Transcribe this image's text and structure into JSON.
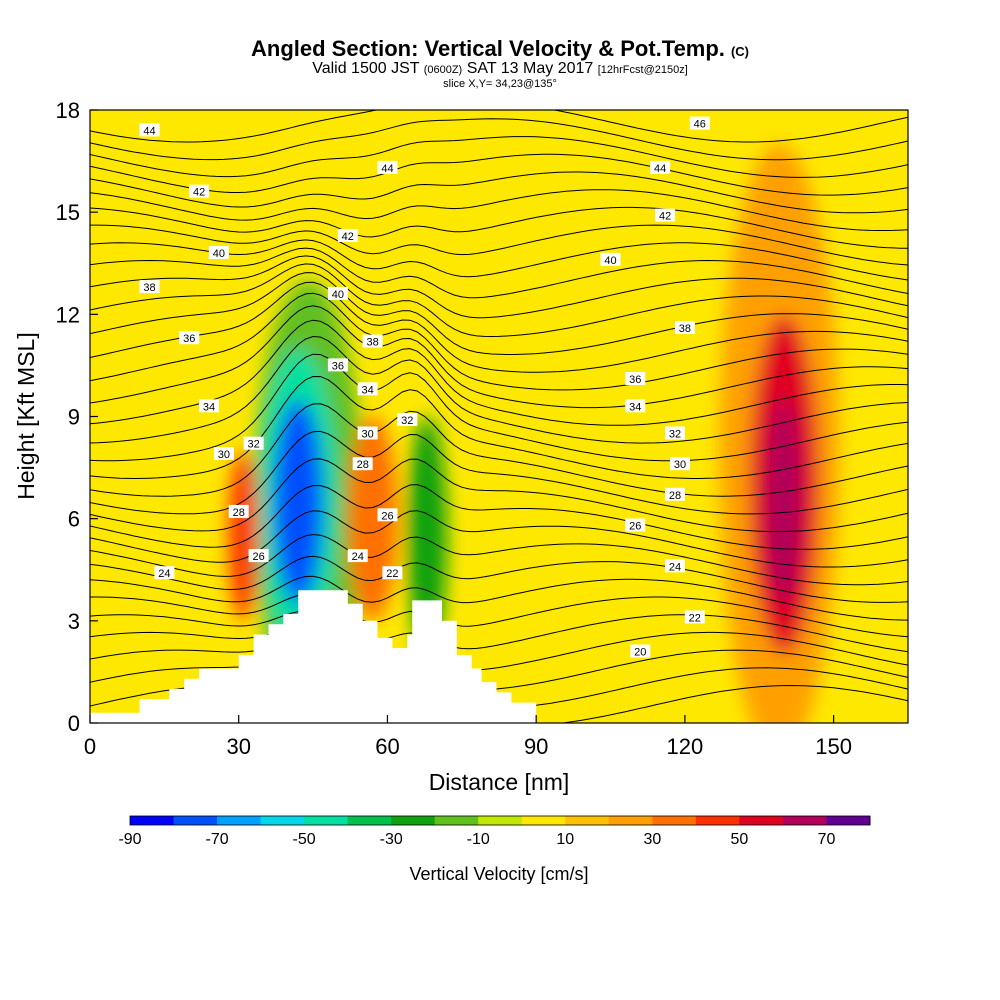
{
  "title": {
    "main": "Angled Section: Vertical Velocity & Pot.Temp.",
    "copyright": "(C)",
    "valid_prefix": "Valid 1500 JST",
    "valid_zulu": "(0600Z)",
    "valid_date": "SAT 13 May 2017",
    "forecast": "[12hrFcst@2150z]",
    "slice": "slice X,Y= 34,23@135°"
  },
  "chart_data": {
    "type": "heatmap",
    "xlabel": "Distance [nm]",
    "ylabel": "Height [Kft MSL]",
    "xlim": [
      0,
      165
    ],
    "ylim": [
      0,
      18
    ],
    "xticks": [
      0,
      30,
      60,
      90,
      120,
      150
    ],
    "yticks": [
      0,
      3,
      6,
      9,
      12,
      15,
      18
    ],
    "background_field_cms": 5,
    "colorbar": {
      "label": "Vertical Velocity [cm/s]",
      "tick_labels": [
        "-90",
        "-70",
        "-50",
        "-30",
        "-10",
        "10",
        "30",
        "50",
        "70"
      ],
      "levels": [
        -90,
        -80,
        -70,
        -60,
        -50,
        -40,
        -30,
        -20,
        -10,
        0,
        10,
        20,
        30,
        40,
        50,
        60,
        70
      ],
      "colors": [
        "#0000ff",
        "#0050ff",
        "#00a0ff",
        "#00d8e8",
        "#00e0a0",
        "#00c050",
        "#10a010",
        "#60c020",
        "#c0e800",
        "#ffe800",
        "#ffc000",
        "#ffa000",
        "#ff7000",
        "#ff3000",
        "#e00020",
        "#b0005a",
        "#600090"
      ]
    },
    "terrain": [
      [
        0,
        0.3
      ],
      [
        10,
        0.3
      ],
      [
        10,
        0.7
      ],
      [
        16,
        0.7
      ],
      [
        16,
        1.0
      ],
      [
        19,
        1.0
      ],
      [
        19,
        1.3
      ],
      [
        22,
        1.3
      ],
      [
        22,
        1.6
      ],
      [
        30,
        1.6
      ],
      [
        30,
        2.0
      ],
      [
        33,
        2.0
      ],
      [
        33,
        2.6
      ],
      [
        36,
        2.6
      ],
      [
        36,
        2.9
      ],
      [
        39,
        2.9
      ],
      [
        39,
        3.2
      ],
      [
        42,
        3.2
      ],
      [
        42,
        3.9
      ],
      [
        52,
        3.9
      ],
      [
        52,
        3.5
      ],
      [
        55,
        3.5
      ],
      [
        55,
        3.0
      ],
      [
        58,
        3.0
      ],
      [
        58,
        2.5
      ],
      [
        61,
        2.5
      ],
      [
        61,
        2.2
      ],
      [
        64,
        2.2
      ],
      [
        64,
        2.6
      ],
      [
        65,
        2.6
      ],
      [
        65,
        3.6
      ],
      [
        71,
        3.6
      ],
      [
        71,
        3.0
      ],
      [
        74,
        3.0
      ],
      [
        74,
        2.0
      ],
      [
        77,
        2.0
      ],
      [
        77,
        1.6
      ],
      [
        79,
        1.6
      ],
      [
        79,
        1.2
      ],
      [
        82,
        1.2
      ],
      [
        82,
        0.9
      ],
      [
        85,
        0.9
      ],
      [
        85,
        0.6
      ],
      [
        90,
        0.6
      ],
      [
        90,
        0
      ]
    ],
    "velocity_regions": [
      {
        "x": 44,
        "y": 6.5,
        "rx": 11,
        "ry": 6.5,
        "value": -15
      },
      {
        "x": 42,
        "y": 6.5,
        "rx": 8,
        "ry": 4.5,
        "value": -45
      },
      {
        "x": 42,
        "y": 6.5,
        "rx": 5,
        "ry": 3,
        "value": -75
      },
      {
        "x": 68,
        "y": 5.5,
        "rx": 4,
        "ry": 3.5,
        "value": -30
      },
      {
        "x": 31,
        "y": 5.5,
        "rx": 3,
        "ry": 2.5,
        "value": 45
      },
      {
        "x": 57,
        "y": 6,
        "rx": 5,
        "ry": 3,
        "value": 35
      },
      {
        "x": 139,
        "y": 8,
        "rx": 12,
        "ry": 9,
        "value": 25
      },
      {
        "x": 140,
        "y": 7,
        "rx": 7,
        "ry": 5,
        "value": 50
      },
      {
        "x": 140,
        "y": 6.5,
        "rx": 3.5,
        "ry": 3,
        "value": 65
      }
    ],
    "theta_labels": [
      {
        "x": 12,
        "y": 17.4,
        "v": "44"
      },
      {
        "x": 22,
        "y": 15.6,
        "v": "42"
      },
      {
        "x": 26,
        "y": 13.8,
        "v": "40"
      },
      {
        "x": 12,
        "y": 12.8,
        "v": "38"
      },
      {
        "x": 20,
        "y": 11.3,
        "v": "36"
      },
      {
        "x": 24,
        "y": 9.3,
        "v": "34"
      },
      {
        "x": 27,
        "y": 7.9,
        "v": "30"
      },
      {
        "x": 33,
        "y": 8.2,
        "v": "32"
      },
      {
        "x": 30,
        "y": 6.2,
        "v": "28"
      },
      {
        "x": 34,
        "y": 4.9,
        "v": "26"
      },
      {
        "x": 15,
        "y": 4.4,
        "v": "24"
      },
      {
        "x": 60,
        "y": 16.3,
        "v": "44"
      },
      {
        "x": 52,
        "y": 14.3,
        "v": "42"
      },
      {
        "x": 50,
        "y": 12.6,
        "v": "40"
      },
      {
        "x": 50,
        "y": 10.5,
        "v": "36"
      },
      {
        "x": 57,
        "y": 11.2,
        "v": "38"
      },
      {
        "x": 56,
        "y": 9.8,
        "v": "34"
      },
      {
        "x": 64,
        "y": 8.9,
        "v": "32"
      },
      {
        "x": 56,
        "y": 8.5,
        "v": "30"
      },
      {
        "x": 55,
        "y": 7.6,
        "v": "28"
      },
      {
        "x": 60,
        "y": 6.1,
        "v": "26"
      },
      {
        "x": 54,
        "y": 4.9,
        "v": "24"
      },
      {
        "x": 61,
        "y": 4.4,
        "v": "22"
      },
      {
        "x": 123,
        "y": 17.6,
        "v": "46"
      },
      {
        "x": 115,
        "y": 16.3,
        "v": "44"
      },
      {
        "x": 116,
        "y": 14.9,
        "v": "42"
      },
      {
        "x": 105,
        "y": 13.6,
        "v": "40"
      },
      {
        "x": 120,
        "y": 11.6,
        "v": "38"
      },
      {
        "x": 110,
        "y": 10.1,
        "v": "36"
      },
      {
        "x": 110,
        "y": 9.3,
        "v": "34"
      },
      {
        "x": 118,
        "y": 8.5,
        "v": "32"
      },
      {
        "x": 119,
        "y": 7.6,
        "v": "30"
      },
      {
        "x": 118,
        "y": 6.7,
        "v": "28"
      },
      {
        "x": 110,
        "y": 5.8,
        "v": "26"
      },
      {
        "x": 118,
        "y": 4.6,
        "v": "24"
      },
      {
        "x": 122,
        "y": 3.1,
        "v": "22"
      },
      {
        "x": 111,
        "y": 2.1,
        "v": "20"
      }
    ]
  }
}
